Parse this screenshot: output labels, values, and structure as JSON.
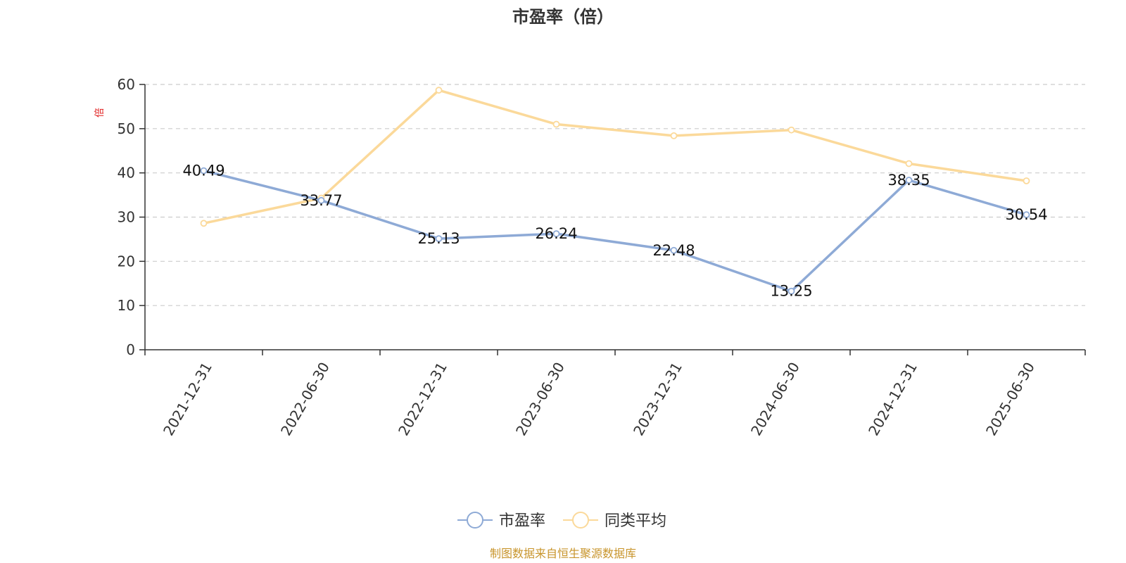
{
  "chart_data": {
    "type": "line",
    "title": "市盈率（倍）",
    "ylabel": "倍",
    "ylim": [
      0,
      60
    ],
    "yticks": [
      0,
      10,
      20,
      30,
      40,
      50,
      60
    ],
    "categories": [
      "2021-12-31",
      "2022-06-30",
      "2022-12-31",
      "2023-06-30",
      "2023-12-31",
      "2024-06-30",
      "2024-12-31",
      "2025-06-30"
    ],
    "series": [
      {
        "name": "市盈率",
        "color": "#8eaad6",
        "values": [
          40.49,
          33.77,
          25.13,
          26.24,
          22.48,
          13.25,
          38.35,
          30.54
        ],
        "show_labels": true
      },
      {
        "name": "同类平均",
        "color": "#fbd99a",
        "values": [
          28.6,
          34.3,
          58.7,
          51.0,
          48.4,
          49.7,
          42.1,
          38.2
        ],
        "show_labels": false
      }
    ],
    "grid": true,
    "legend": "bottom-center"
  },
  "source": "制图数据来自恒生聚源数据库",
  "colors": {
    "axis": "#333333",
    "grid": "#cccccc",
    "ylabel": "#e02020",
    "source": "#c8952c"
  }
}
